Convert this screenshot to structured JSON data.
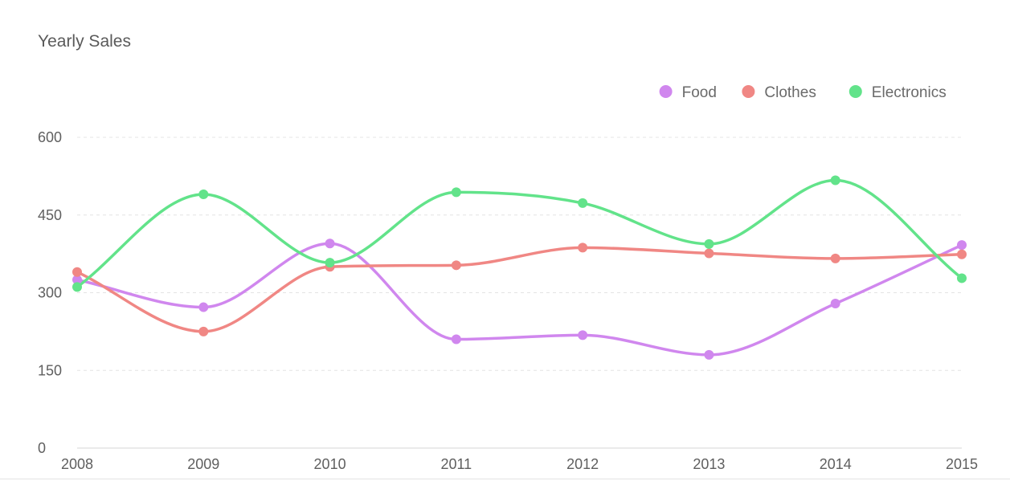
{
  "chart_data": {
    "type": "line",
    "title": "Yearly Sales",
    "xlabel": "",
    "ylabel": "",
    "x": [
      "2008",
      "2009",
      "2010",
      "2011",
      "2012",
      "2013",
      "2014",
      "2015"
    ],
    "ylim": [
      0,
      600
    ],
    "yticks": [
      "0",
      "150",
      "300",
      "450",
      "600"
    ],
    "grid": true,
    "legend_position": "top-right",
    "curve": "smooth",
    "series": [
      {
        "name": "Food",
        "color": "#d087ee",
        "values": [
          325,
          272,
          395,
          210,
          218,
          180,
          279,
          392
        ]
      },
      {
        "name": "Clothes",
        "color": "#f08784",
        "values": [
          340,
          225,
          350,
          353,
          387,
          376,
          366,
          374
        ]
      },
      {
        "name": "Electronics",
        "color": "#62e38a",
        "values": [
          311,
          490,
          358,
          494,
          473,
          394,
          517,
          328
        ]
      }
    ]
  }
}
